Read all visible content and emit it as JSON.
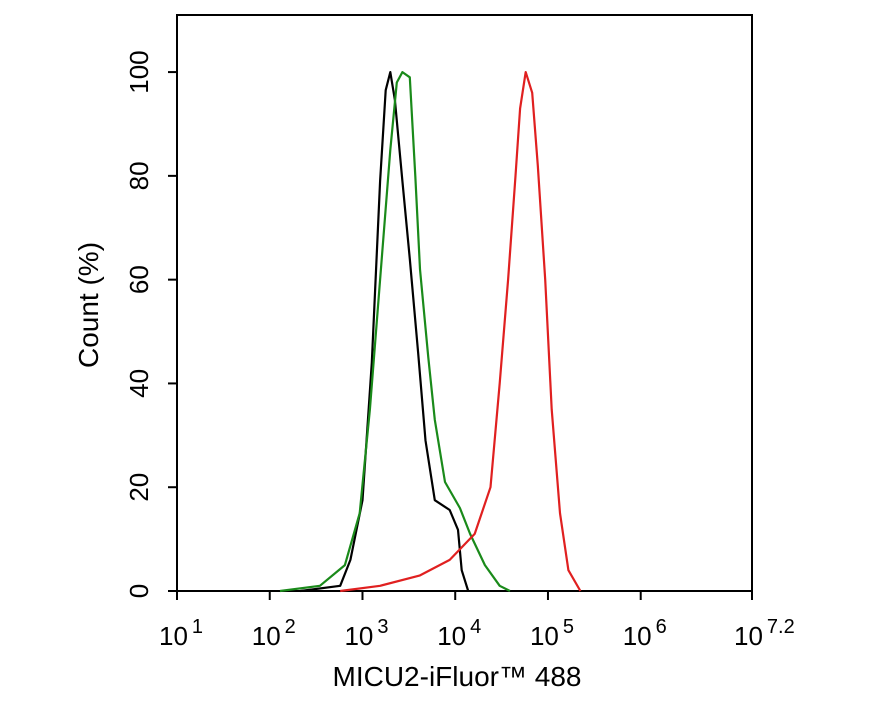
{
  "chart_data": {
    "type": "line",
    "xscale": "log",
    "xlabel": "MICU2-iFluor™ 488",
    "ylabel": "Count  (%)",
    "xlim": [
      10,
      15848932
    ],
    "ylim": [
      0,
      111
    ],
    "xticks": [
      {
        "value": 10,
        "label": "10",
        "exponent": "1"
      },
      {
        "value": 100,
        "label": "10",
        "exponent": "2"
      },
      {
        "value": 1000,
        "label": "10",
        "exponent": "3"
      },
      {
        "value": 10000,
        "label": "10",
        "exponent": "4"
      },
      {
        "value": 100000,
        "label": "10",
        "exponent": "5"
      },
      {
        "value": 1000000,
        "label": "10",
        "exponent": "6"
      },
      {
        "value": 15848932,
        "label": "10",
        "exponent": "7.2"
      }
    ],
    "yticks": [
      0,
      20,
      40,
      60,
      80,
      100
    ],
    "series": [
      {
        "color": "#000000",
        "x": [
          214,
          575,
          741,
          1000,
          1259,
          1549,
          1778,
          1995,
          2239,
          2692,
          3236,
          3981,
          4786,
          6026,
          8710,
          10715,
          11749,
          13804
        ],
        "values": [
          0,
          1,
          6,
          17.5,
          44,
          79,
          96.5,
          100,
          94.6,
          79,
          64,
          46,
          29,
          17.5,
          15.6,
          11.8,
          4,
          0
        ]
      },
      {
        "color": "#1a8a1a",
        "x": [
          129,
          347,
          646,
          933,
          1202,
          1549,
          1995,
          2344,
          2692,
          3236,
          3715,
          4169,
          5129,
          6026,
          7762,
          11220,
          14454,
          20893,
          30200,
          38905
        ],
        "values": [
          0,
          1,
          5,
          15,
          35,
          60,
          85,
          98,
          100,
          99,
          80,
          62,
          45,
          33,
          21,
          16,
          11,
          5,
          1,
          0
        ]
      },
      {
        "color": "#e02020",
        "x": [
          575,
          1549,
          4169,
          8710,
          16218,
          23988,
          30200,
          37154,
          44668,
          50119,
          57544,
          67608,
          77625,
          93325,
          109648,
          134896,
          165959,
          223872
        ],
        "values": [
          0,
          1,
          3,
          6,
          11,
          20,
          40,
          60,
          80,
          93,
          100,
          96,
          82,
          60,
          35,
          15,
          4,
          0
        ]
      }
    ]
  }
}
